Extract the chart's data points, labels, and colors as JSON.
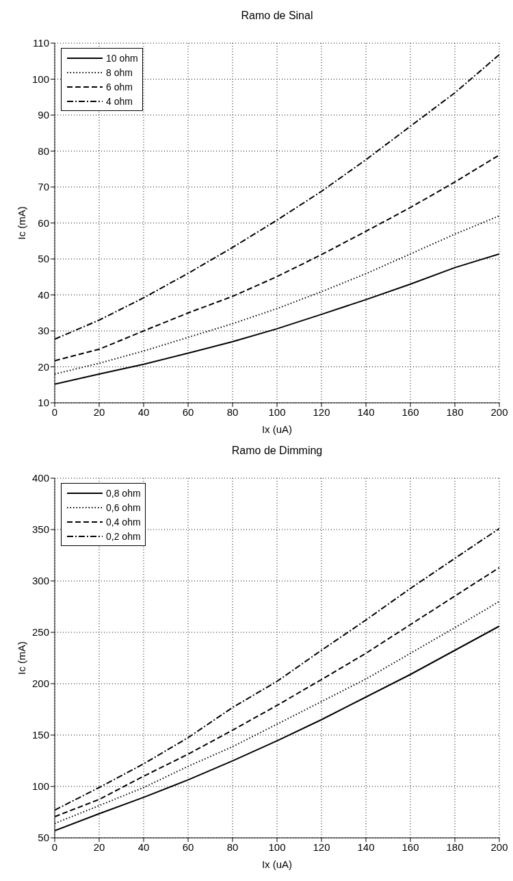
{
  "chart_data": [
    {
      "type": "line",
      "title": "Ramo de Sinal",
      "xlabel": "Ix (uA)",
      "ylabel": "Ic (mA)",
      "x": [
        0,
        20,
        40,
        60,
        80,
        100,
        120,
        140,
        160,
        180,
        200
      ],
      "series": [
        {
          "name": "10 ohm",
          "color": "#000000",
          "line_style": "solid",
          "values": [
            15.2,
            18,
            20.7,
            23.8,
            27,
            30.6,
            34.6,
            38.7,
            43,
            47.6,
            51.4
          ]
        },
        {
          "name": "8 ohm",
          "color": "#000000",
          "line_style": "dotted",
          "values": [
            18,
            21,
            24.4,
            28.2,
            32,
            36.2,
            40.9,
            45.9,
            51.4,
            56.9,
            62
          ]
        },
        {
          "name": "6 ohm",
          "color": "#000000",
          "line_style": "dashed",
          "values": [
            21.7,
            24.9,
            30,
            35,
            39.6,
            45.1,
            51.2,
            57.7,
            64.3,
            71.4,
            78.9
          ]
        },
        {
          "name": "4 ohm",
          "color": "#000000",
          "line_style": "dashdot",
          "values": [
            27.7,
            33,
            39.2,
            46,
            53.2,
            60.8,
            68.8,
            77.6,
            86.9,
            96.2,
            106.8
          ]
        }
      ],
      "xlim": [
        0,
        200
      ],
      "xticks": [
        0,
        20,
        40,
        60,
        80,
        100,
        120,
        140,
        160,
        180,
        200
      ],
      "ylim": [
        10,
        110
      ],
      "yticks": [
        10,
        20,
        30,
        40,
        50,
        60,
        70,
        80,
        90,
        100,
        110
      ],
      "grid": true,
      "legend": "top left",
      "marker": "none"
    },
    {
      "type": "line",
      "title": "Ramo de Dimming",
      "xlabel": "Ix (uA)",
      "ylabel": "Ic (mA)",
      "x": [
        0,
        20,
        40,
        60,
        80,
        100,
        120,
        140,
        160,
        180,
        200
      ],
      "series": [
        {
          "name": "0,8 ohm",
          "color": "#000000",
          "line_style": "solid",
          "values": [
            57,
            73.5,
            89.4,
            106.4,
            124.9,
            144.4,
            165,
            187,
            209,
            232.5,
            256
          ]
        },
        {
          "name": "0,6 ohm",
          "color": "#000000",
          "line_style": "dotted",
          "values": [
            64,
            81.4,
            99,
            119.6,
            138.7,
            160.6,
            182.6,
            204.6,
            229.6,
            254.5,
            280
          ]
        },
        {
          "name": "0,4 ohm",
          "color": "#000000",
          "line_style": "dashed",
          "values": [
            70.6,
            87.4,
            110,
            131.4,
            154.8,
            178.9,
            204,
            229.6,
            257.5,
            285.3,
            313
          ]
        },
        {
          "name": "0,2 ohm",
          "color": "#000000",
          "line_style": "dashdot",
          "values": [
            77,
            99,
            122,
            147.5,
            176.8,
            202.3,
            232.5,
            262,
            292.7,
            322,
            351
          ]
        }
      ],
      "xlim": [
        0,
        200
      ],
      "xticks": [
        0,
        20,
        40,
        60,
        80,
        100,
        120,
        140,
        160,
        180,
        200
      ],
      "ylim": [
        50,
        400
      ],
      "yticks": [
        50,
        100,
        150,
        200,
        250,
        300,
        350,
        400
      ],
      "grid": true,
      "legend": "top left",
      "marker": "none"
    }
  ]
}
